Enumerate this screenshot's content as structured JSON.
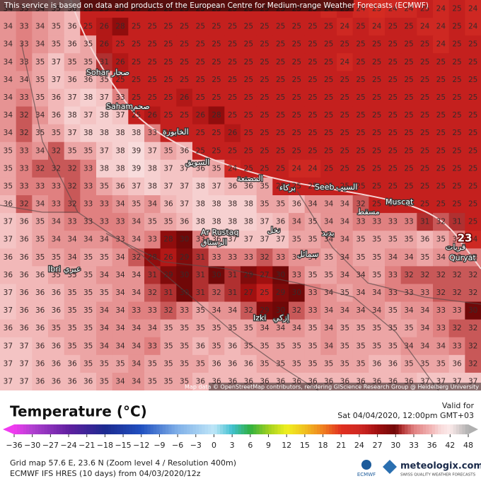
{
  "banner": "This service is based on data and products of the European Centre for Medium-range Weather Forecasts (ECMWF)",
  "grid": {
    "rows": [
      [
        34,
        33,
        34,
        35,
        36,
        25,
        25,
        25,
        25,
        25,
        25,
        25,
        25,
        25,
        25,
        25,
        25,
        25,
        25,
        25,
        24,
        25,
        24,
        23,
        24,
        24,
        25,
        24,
        25,
        24
      ],
      [
        34,
        33,
        34,
        35,
        36,
        25,
        26,
        28,
        25,
        25,
        25,
        25,
        25,
        25,
        25,
        25,
        25,
        25,
        25,
        25,
        25,
        24,
        25,
        24,
        25,
        25,
        24,
        24,
        25,
        24
      ],
      [
        34,
        33,
        34,
        35,
        36,
        35,
        26,
        25,
        25,
        25,
        25,
        25,
        25,
        25,
        25,
        25,
        25,
        25,
        25,
        25,
        25,
        25,
        25,
        25,
        25,
        25,
        25,
        24,
        25,
        25
      ],
      [
        34,
        33,
        35,
        37,
        35,
        35,
        31,
        26,
        25,
        25,
        25,
        25,
        25,
        25,
        25,
        25,
        25,
        25,
        25,
        25,
        25,
        24,
        25,
        25,
        25,
        25,
        25,
        25,
        25,
        25
      ],
      [
        34,
        34,
        35,
        37,
        36,
        36,
        35,
        25,
        25,
        25,
        25,
        25,
        25,
        25,
        25,
        25,
        25,
        25,
        25,
        25,
        25,
        25,
        25,
        25,
        25,
        25,
        25,
        25,
        25,
        25
      ],
      [
        34,
        33,
        35,
        36,
        37,
        38,
        37,
        33,
        25,
        25,
        25,
        26,
        25,
        25,
        25,
        25,
        25,
        25,
        25,
        25,
        25,
        25,
        25,
        25,
        25,
        25,
        25,
        25,
        25,
        25
      ],
      [
        34,
        32,
        34,
        36,
        38,
        37,
        38,
        37,
        25,
        26,
        25,
        25,
        26,
        28,
        25,
        25,
        25,
        25,
        25,
        25,
        25,
        25,
        25,
        25,
        25,
        25,
        25,
        25,
        25,
        25
      ],
      [
        34,
        32,
        35,
        35,
        37,
        38,
        38,
        38,
        38,
        33,
        25,
        25,
        25,
        25,
        26,
        25,
        25,
        25,
        25,
        25,
        25,
        25,
        25,
        25,
        25,
        25,
        25,
        25,
        25,
        25
      ],
      [
        35,
        33,
        34,
        32,
        35,
        35,
        37,
        38,
        39,
        37,
        35,
        36,
        25,
        25,
        25,
        25,
        25,
        25,
        25,
        25,
        25,
        25,
        25,
        25,
        25,
        25,
        25,
        25,
        25,
        25
      ],
      [
        35,
        33,
        32,
        32,
        32,
        33,
        38,
        38,
        39,
        38,
        37,
        37,
        36,
        35,
        24,
        25,
        25,
        25,
        24,
        24,
        25,
        25,
        25,
        25,
        25,
        25,
        25,
        25,
        25,
        25
      ],
      [
        35,
        33,
        33,
        33,
        32,
        33,
        35,
        36,
        37,
        38,
        37,
        37,
        38,
        37,
        36,
        36,
        35,
        25,
        25,
        25,
        25,
        25,
        25,
        25,
        25,
        25,
        25,
        25,
        25,
        25
      ],
      [
        36,
        32,
        34,
        33,
        32,
        33,
        33,
        34,
        35,
        34,
        36,
        37,
        38,
        38,
        38,
        38,
        35,
        35,
        36,
        34,
        34,
        34,
        32,
        25,
        25,
        25,
        25,
        25,
        25,
        25
      ],
      [
        37,
        36,
        35,
        34,
        33,
        33,
        33,
        33,
        34,
        35,
        35,
        36,
        38,
        38,
        38,
        38,
        37,
        36,
        34,
        35,
        34,
        34,
        33,
        33,
        33,
        33,
        31,
        32,
        31,
        25
      ],
      [
        37,
        36,
        35,
        34,
        34,
        34,
        34,
        33,
        34,
        33,
        28,
        30,
        33,
        36,
        37,
        37,
        37,
        37,
        35,
        35,
        34,
        34,
        35,
        35,
        35,
        35,
        36,
        35,
        33,
        24
      ],
      [
        36,
        36,
        35,
        35,
        34,
        35,
        35,
        34,
        32,
        28,
        26,
        29,
        31,
        33,
        33,
        33,
        32,
        33,
        34,
        34,
        35,
        34,
        35,
        35,
        34,
        34,
        35,
        34,
        33,
        33
      ],
      [
        36,
        36,
        36,
        35,
        35,
        35,
        34,
        34,
        34,
        31,
        29,
        30,
        31,
        30,
        31,
        29,
        27,
        30,
        33,
        35,
        35,
        34,
        34,
        35,
        33,
        32,
        32,
        32,
        32,
        32
      ],
      [
        37,
        36,
        36,
        36,
        35,
        35,
        35,
        34,
        34,
        32,
        31,
        30,
        31,
        32,
        31,
        27,
        25,
        29,
        30,
        33,
        34,
        35,
        34,
        34,
        33,
        33,
        33,
        32,
        32,
        32
      ],
      [
        37,
        36,
        36,
        36,
        35,
        35,
        34,
        34,
        33,
        33,
        32,
        33,
        35,
        34,
        34,
        32,
        29,
        30,
        32,
        33,
        34,
        34,
        34,
        34,
        35,
        34,
        34,
        33,
        33,
        30
      ],
      [
        36,
        36,
        36,
        35,
        35,
        35,
        34,
        34,
        34,
        34,
        35,
        35,
        35,
        35,
        35,
        35,
        34,
        34,
        34,
        35,
        34,
        35,
        35,
        35,
        35,
        35,
        34,
        33,
        32,
        32
      ],
      [
        37,
        37,
        36,
        36,
        35,
        35,
        34,
        34,
        34,
        33,
        35,
        35,
        36,
        35,
        36,
        35,
        35,
        35,
        35,
        35,
        34,
        35,
        35,
        35,
        35,
        34,
        34,
        34,
        33,
        32
      ],
      [
        37,
        37,
        36,
        36,
        36,
        35,
        35,
        35,
        34,
        35,
        35,
        35,
        35,
        36,
        36,
        36,
        35,
        35,
        35,
        35,
        35,
        35,
        35,
        36,
        36,
        35,
        35,
        35,
        36,
        32
      ],
      [
        37,
        37,
        36,
        36,
        36,
        36,
        35,
        34,
        34,
        35,
        35,
        35,
        36,
        36,
        36,
        36,
        36,
        36,
        36,
        36,
        36,
        36,
        36,
        36,
        36,
        36,
        37,
        37,
        37,
        37
      ]
    ]
  },
  "places": [
    "Sohar",
    "صحار",
    "Saham",
    "صحم",
    "الخابورة",
    "السويق",
    "المصنعة",
    "بركاء",
    "Seeb",
    "السيب",
    "Muscat",
    "مسقط",
    "Ar Rustaq",
    "الرستاق",
    "Izki",
    "إزكي",
    "Ibri",
    "عبري",
    "Quryat",
    "قريات",
    "نخل",
    "سمائل",
    "بدبد"
  ],
  "marker": "23",
  "attribution": "Map data © OpenStreetMap contributors, rendering GIScience Research Group @ Heidelberg University",
  "legend": {
    "title": "Temperature (°C)",
    "ticks": [
      {
        "value": -36,
        "label": "−36"
      },
      {
        "value": -30,
        "label": "−30"
      },
      {
        "value": -27,
        "label": "−27"
      },
      {
        "value": -24,
        "label": "−24"
      },
      {
        "value": -21,
        "label": "−21"
      },
      {
        "value": -18,
        "label": "−18"
      },
      {
        "value": -15,
        "label": "−15"
      },
      {
        "value": -12,
        "label": "−12"
      },
      {
        "value": -9,
        "label": "−9"
      },
      {
        "value": -6,
        "label": "−6"
      },
      {
        "value": -3,
        "label": "−3"
      },
      0,
      3,
      6,
      9,
      12,
      15,
      18,
      21,
      24,
      27,
      30,
      33,
      36,
      42,
      48
    ]
  },
  "valid": {
    "label": "Valid for",
    "time": "Sat 04/04/2020, 12:00pm GMT+03"
  },
  "footer": {
    "grid": "Grid map 57.6 E, 23.6 N (Zoom level 4 / Resolution 400m)",
    "model": "ECMWF IFS HRES (10 days) from 04/03/2020/12z"
  },
  "logos": {
    "ecmwf": "ECMWF",
    "brand": "meteologix.com",
    "tagline": "SWISS QUALITY WEATHER FORECASTS"
  }
}
